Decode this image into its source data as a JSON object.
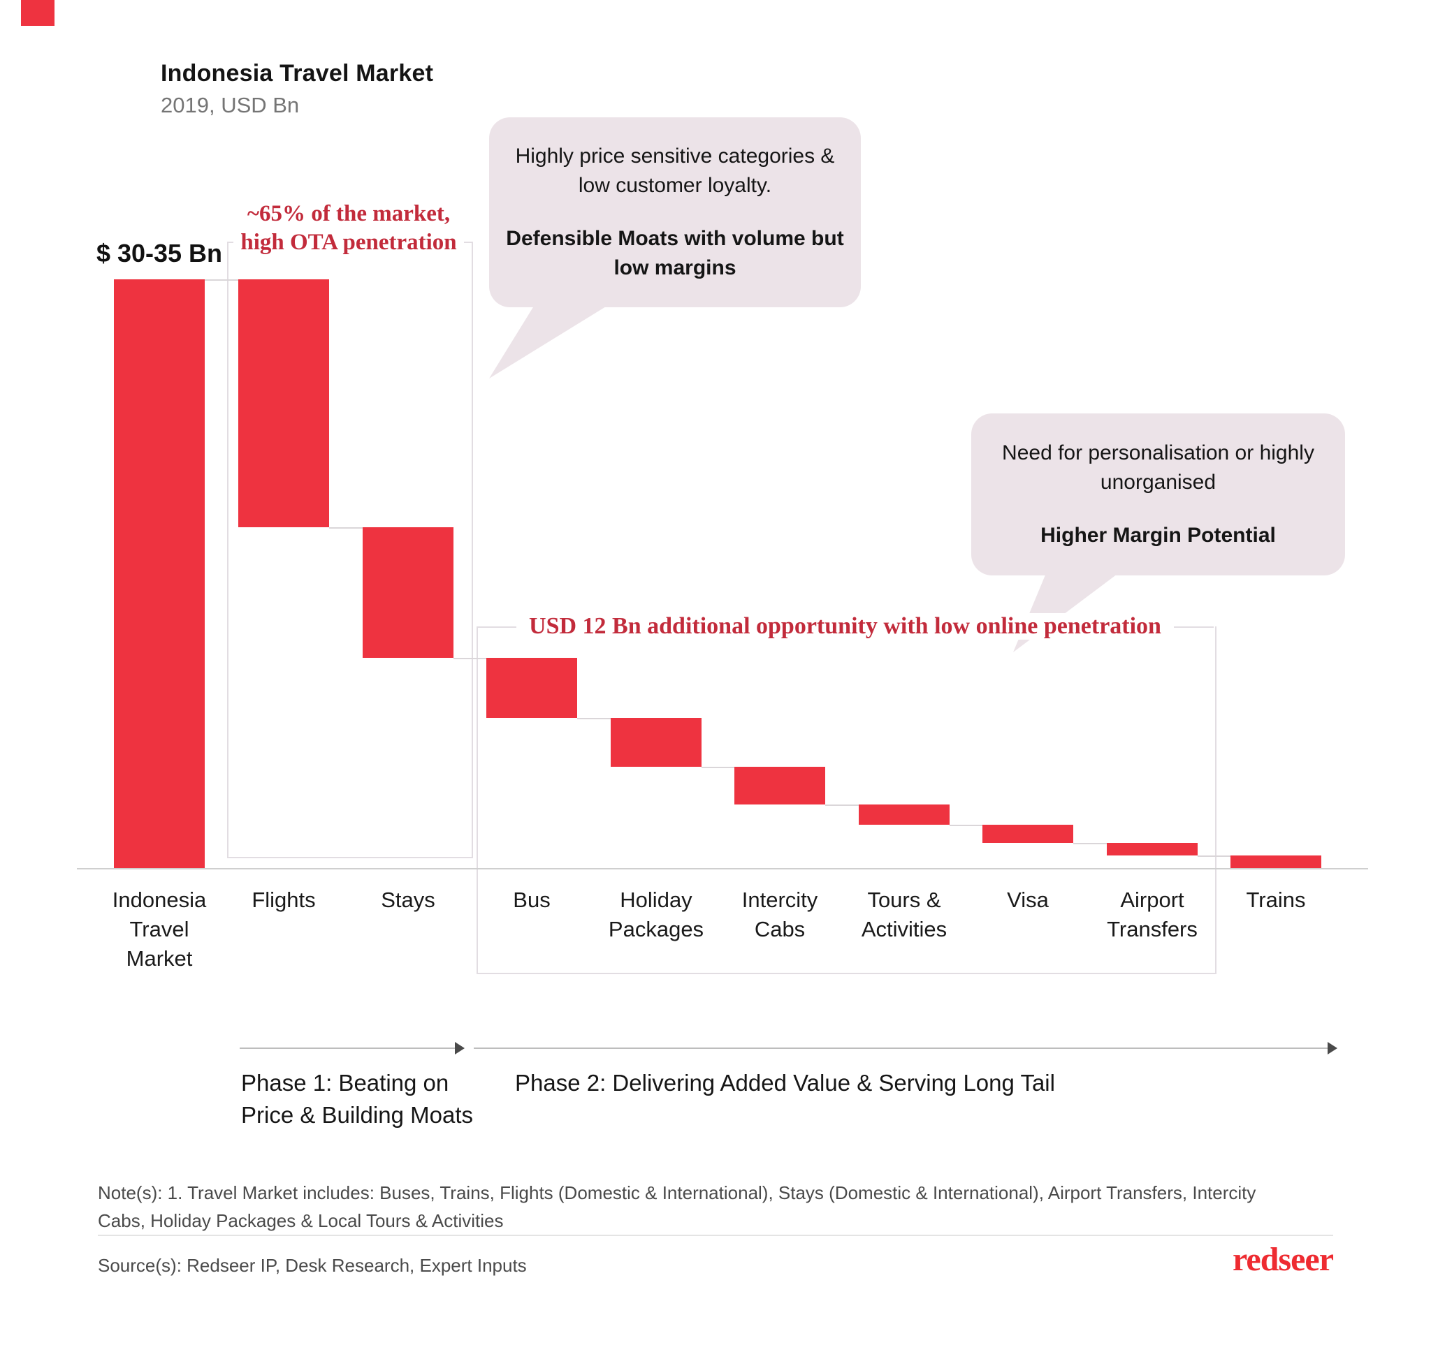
{
  "header": {
    "title": "Indonesia Travel Market",
    "subtitle": "2019, USD Bn"
  },
  "chart_data": {
    "type": "waterfall",
    "title": "Indonesia Travel Market",
    "subtitle": "2019, USD Bn",
    "unit": "USD Bn",
    "grid": false,
    "categories": [
      "Indonesia\nTravel\nMarket",
      "Flights",
      "Stays",
      "Bus",
      "Holiday\nPackages",
      "Intercity\nCabs",
      "Tours &\nActivities",
      "Visa",
      "Airport\nTransfers",
      "Trains"
    ],
    "total_bar": {
      "label": "$ 30-35 Bn",
      "value_est": 32.5
    },
    "decrement_values_est": [
      13.7,
      7.2,
      3.3,
      2.7,
      2.1,
      1.1,
      1.0,
      0.7,
      0.6
    ],
    "value_labels_shown": false,
    "phase1_categories": [
      "Flights",
      "Stays"
    ],
    "phase2_categories": [
      "Bus",
      "Holiday Packages",
      "Intercity Cabs",
      "Tours & Activities",
      "Visa",
      "Airport Transfers"
    ]
  },
  "annotations": {
    "total_label": "$ 30-35 Bn",
    "ota_note": "~65% of the market,\nhigh OTA penetration",
    "opportunity_note": "USD 12 Bn additional opportunity with low online penetration",
    "bubble1_line1": "Highly price sensitive categories &\nlow customer loyalty.",
    "bubble1_line2": "Defensible Moats with volume but\nlow margins",
    "bubble2_line1": "Need for personalisation or highly\nunorganised",
    "bubble2_line2": "Higher Margin Potential"
  },
  "phases": {
    "phase1_label": "Phase 1: Beating on\nPrice & Building Moats",
    "phase2_label": "Phase 2: Delivering Added Value & Serving Long Tail"
  },
  "footer": {
    "note": "Note(s): 1. Travel Market includes: Buses, Trains, Flights (Domestic & International), Stays (Domestic & International), Airport Transfers, Intercity Cabs, Holiday Packages & Local Tours & Activities",
    "source": "Source(s): Redseer IP, Desk Research, Expert Inputs",
    "logo_text": "redseer"
  },
  "colors": {
    "bar": "#ee3340",
    "accent_serif_red": "#c22b3b",
    "bubble_fill": "#ece3e8",
    "bracket_line": "#e2dde2",
    "axis_line": "#cfcfcf",
    "logo_red": "#ee2b31"
  }
}
